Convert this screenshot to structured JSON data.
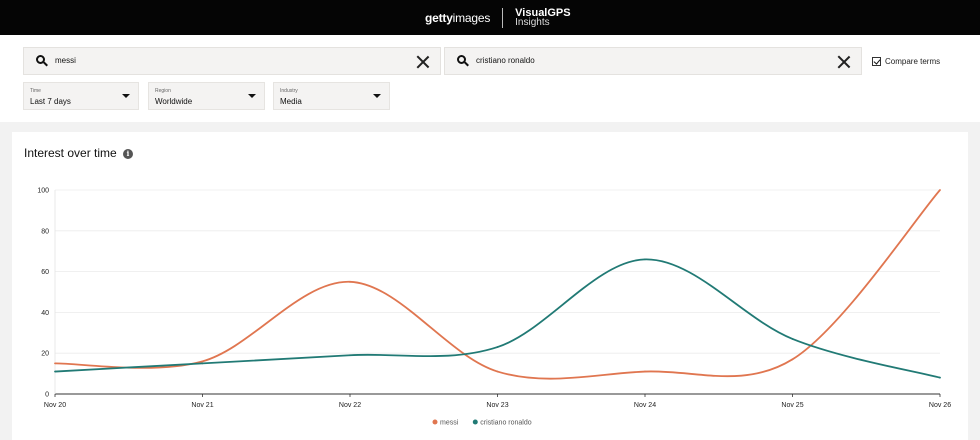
{
  "header": {
    "brand_primary_bold": "getty",
    "brand_primary_thin": "images",
    "brand_secondary_line1": "VisualGPS",
    "brand_secondary_line2": "Insights"
  },
  "filters": {
    "search_term_1": "messi",
    "search_term_2": "cristiano ronaldo",
    "compare_label": "Compare terms",
    "compare_checked": true,
    "time": {
      "label": "Time",
      "value": "Last 7 days"
    },
    "region": {
      "label": "Region",
      "value": "Worldwide"
    },
    "industry": {
      "label": "Industry",
      "value": "Media"
    }
  },
  "card": {
    "title": "Interest over time",
    "info_icon": "info-icon"
  },
  "chart_data": {
    "type": "line",
    "title": "Interest over time",
    "x": [
      "Nov 20",
      "Nov 21",
      "Nov 22",
      "Nov 23",
      "Nov 24",
      "Nov 25",
      "Nov 26"
    ],
    "ylim": [
      0,
      100
    ],
    "yticks": [
      0,
      20,
      40,
      60,
      80,
      100
    ],
    "grid": true,
    "legend": "bottom-center",
    "series": [
      {
        "name": "messi",
        "color": "#e07650",
        "values": [
          15,
          16,
          55,
          11,
          11,
          17,
          100
        ]
      },
      {
        "name": "cristiano ronaldo",
        "color": "#217a75",
        "values": [
          11,
          15,
          19,
          23,
          66,
          27,
          8
        ]
      }
    ]
  }
}
